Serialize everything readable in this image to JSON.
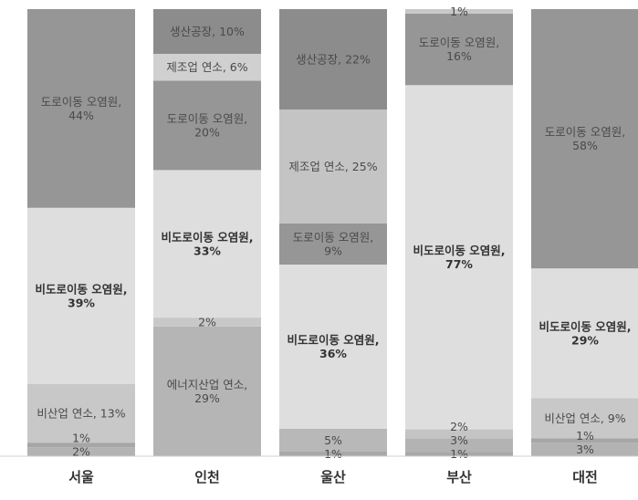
{
  "chart_data": {
    "type": "bar",
    "stacked": true,
    "normalized": true,
    "categories": [
      "서울",
      "인천",
      "울산",
      "부산",
      "대전"
    ],
    "ylim": [
      0,
      100
    ],
    "grid": false,
    "legend": "none",
    "stacks": [
      {
        "category": "서울",
        "segments": [
          {
            "value": 2,
            "color": "#b3b3b3",
            "name": "",
            "value_text": "2%"
          },
          {
            "value": 1,
            "color": "#a6a6a6",
            "name": "",
            "value_text": "1%"
          },
          {
            "value": 13,
            "color": "#c8c8c8",
            "name": "비산업 연소,",
            "value_text": "13%",
            "inline": true
          },
          {
            "value": 39,
            "color": "#dedede",
            "name": "비도로이동 오염원,",
            "value_text": "39%",
            "bold": true
          },
          {
            "value": 44,
            "color": "#969696",
            "name": "도로이동 오염원,",
            "value_text": "44%"
          }
        ]
      },
      {
        "category": "인천",
        "segments": [
          {
            "value": 29,
            "color": "#b5b5b5",
            "name": "에너지산업 연소,",
            "value_text": "29%"
          },
          {
            "value": 2,
            "color": "#c8c8c8",
            "name": "",
            "value_text": "2%"
          },
          {
            "value": 33,
            "color": "#dedede",
            "name": "비도로이동 오염원,",
            "value_text": "33%",
            "bold": true
          },
          {
            "value": 20,
            "color": "#969696",
            "name": "도로이동 오염원,",
            "value_text": "20%"
          },
          {
            "value": 6,
            "color": "#d0d0d0",
            "name": "제조업 연소,",
            "value_text": "6%",
            "inline": true
          },
          {
            "value": 10,
            "color": "#8c8c8c",
            "name": "생산공장,",
            "value_text": "10%",
            "inline": true
          }
        ]
      },
      {
        "category": "울산",
        "segments": [
          {
            "value": 1,
            "color": "#a8a8a8",
            "name": "",
            "value_text": "1%"
          },
          {
            "value": 5,
            "color": "#b8b8b8",
            "name": "",
            "value_text": "5%"
          },
          {
            "value": 36,
            "color": "#dedede",
            "name": "비도로이동 오염원,",
            "value_text": "36%",
            "bold": true
          },
          {
            "value": 9,
            "color": "#969696",
            "name": "도로이동 오염원,",
            "value_text": "9%"
          },
          {
            "value": 25,
            "color": "#c4c4c4",
            "name": "제조업 연소,",
            "value_text": "25%",
            "inline": true
          },
          {
            "value": 22,
            "color": "#8c8c8c",
            "name": "생산공장,",
            "value_text": "22%",
            "inline": true
          }
        ]
      },
      {
        "category": "부산",
        "segments": [
          {
            "value": 1,
            "color": "#a8a8a8",
            "name": "",
            "value_text": "1%"
          },
          {
            "value": 3,
            "color": "#b3b3b3",
            "name": "",
            "value_text": "3%"
          },
          {
            "value": 2,
            "color": "#c4c4c4",
            "name": "",
            "value_text": "2%"
          },
          {
            "value": 77,
            "color": "#dedede",
            "name": "비도로이동 오염원,",
            "value_text": "77%",
            "bold": true
          },
          {
            "value": 16,
            "color": "#969696",
            "name": "도로이동 오염원,",
            "value_text": "16%"
          },
          {
            "value": 1,
            "color": "#c8c8c8",
            "name": "",
            "value_text": "1%"
          }
        ]
      },
      {
        "category": "대전",
        "segments": [
          {
            "value": 3,
            "color": "#b3b3b3",
            "name": "",
            "value_text": "3%"
          },
          {
            "value": 1,
            "color": "#a6a6a6",
            "name": "",
            "value_text": "1%"
          },
          {
            "value": 9,
            "color": "#c8c8c8",
            "name": "비산업 연소,",
            "value_text": "9%",
            "inline": true
          },
          {
            "value": 29,
            "color": "#dedede",
            "name": "비도로이동 오염원,",
            "value_text": "29%",
            "bold": true
          },
          {
            "value": 58,
            "color": "#969696",
            "name": "도로이동 오염원,",
            "value_text": "58%"
          }
        ]
      }
    ]
  }
}
